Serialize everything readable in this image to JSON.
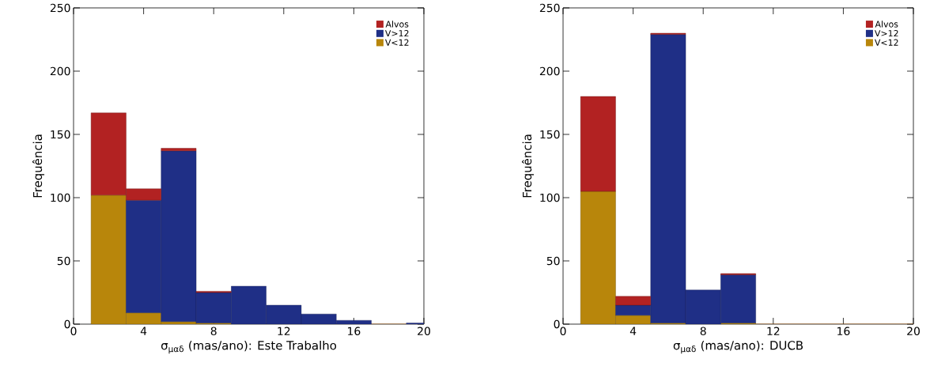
{
  "chart_data": [
    {
      "type": "bar",
      "xlabel": "σ$_{μαδ}$ (mas/ano): Este Trabalho",
      "ylabel": "Frequência",
      "stacked": true,
      "legend": "top right",
      "x": [
        2,
        4,
        6,
        8,
        10,
        12,
        14,
        16,
        18,
        20
      ],
      "xlim": [
        0,
        20
      ],
      "xticks": [
        0,
        4,
        8,
        12,
        16,
        20
      ],
      "ylim": [
        0,
        250
      ],
      "yticks": [
        0,
        50,
        100,
        150,
        200,
        250
      ],
      "series": [
        {
          "name": "V<12",
          "color": "#b8860b",
          "values": [
            102,
            9,
            2,
            1,
            0,
            0,
            0,
            0,
            0,
            0
          ]
        },
        {
          "name": "V>12",
          "color": "#1f2f86",
          "values": [
            0,
            89,
            135,
            24,
            30,
            15,
            8,
            3,
            0,
            1
          ]
        },
        {
          "name": "Alvos",
          "color": "#b22222",
          "values": [
            65,
            9,
            2,
            1,
            0,
            0,
            0,
            0,
            0,
            0
          ]
        }
      ]
    },
    {
      "type": "bar",
      "xlabel": "σ$_{μαδ}$ (mas/ano): DUCB",
      "ylabel": "Frequência",
      "stacked": true,
      "legend": "top right",
      "x": [
        2,
        4,
        6,
        8,
        10,
        12,
        14,
        16,
        18,
        20
      ],
      "xlim": [
        0,
        20
      ],
      "xticks": [
        0,
        4,
        8,
        12,
        16,
        20
      ],
      "ylim": [
        0,
        250
      ],
      "yticks": [
        0,
        50,
        100,
        150,
        200,
        250
      ],
      "series": [
        {
          "name": "V<12",
          "color": "#b8860b",
          "values": [
            105,
            7,
            1,
            0,
            1,
            0,
            0,
            0,
            0,
            0
          ]
        },
        {
          "name": "V>12",
          "color": "#1f2f86",
          "values": [
            0,
            8,
            228,
            27,
            38,
            0,
            0,
            0,
            0,
            0
          ]
        },
        {
          "name": "Alvos",
          "color": "#b22222",
          "values": [
            75,
            7,
            1,
            0,
            1,
            0,
            0,
            0,
            0,
            0
          ]
        }
      ]
    }
  ]
}
